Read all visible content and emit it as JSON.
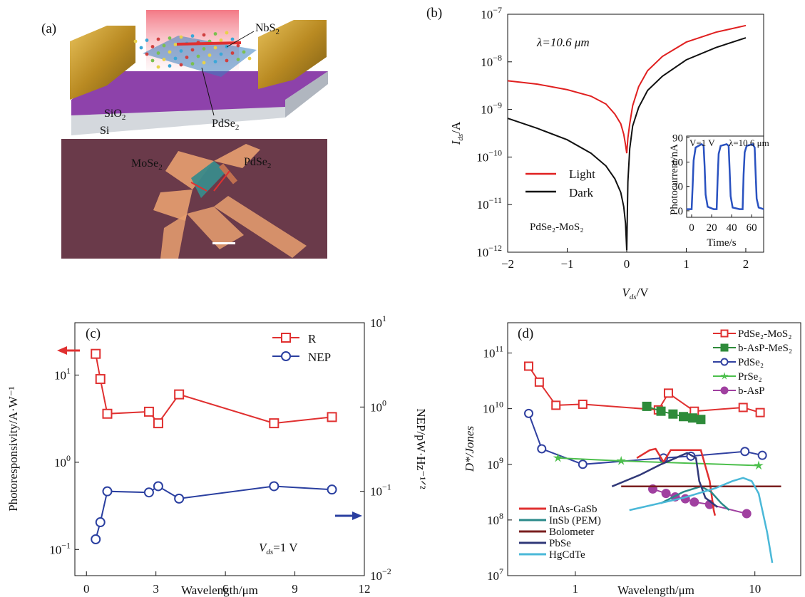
{
  "panels": {
    "a": {
      "label": "(a)",
      "labels": {
        "nbs2": "NbS",
        "sio2": "SiO",
        "si": "Si",
        "pdse2": "PdSe",
        "mose2": "MoSe",
        "pdse2b": "PdSe",
        "sub2": "2"
      }
    }
  },
  "chart_data": [
    {
      "panel": "(b)",
      "type": "line",
      "xlabel": "V_ds/V",
      "ylabel": "I_ds/A",
      "yscale": "log",
      "xlim": [
        -2,
        2.3
      ],
      "ylim": [
        1e-12,
        1e-07
      ],
      "xticks": [
        "−2",
        "−1",
        "0",
        "1",
        "2"
      ],
      "yticks_exp": [
        "−7",
        "−8",
        "−9",
        "−10",
        "−11",
        "−12"
      ],
      "annotations": [
        "λ=10.6 μm",
        "PdSe₂-MoS₂"
      ],
      "legend": {
        "position": "lower-left"
      },
      "series": [
        {
          "name": "Light",
          "color": "#e02020",
          "x": [
            -2,
            -1.5,
            -1,
            -0.6,
            -0.35,
            -0.2,
            -0.1,
            -0.05,
            -0.02,
            0.0,
            0.02,
            0.05,
            0.1,
            0.2,
            0.35,
            0.6,
            1.0,
            1.5,
            2.0
          ],
          "y": [
            4e-09,
            3.4e-09,
            2.6e-09,
            1.9e-09,
            1.3e-09,
            8e-10,
            5e-10,
            3e-10,
            1.8e-10,
            1.2e-10,
            2.5e-10,
            5e-10,
            1.2e-09,
            3e-09,
            6.5e-09,
            1.3e-08,
            2.6e-08,
            4.2e-08,
            5.8e-08
          ]
        },
        {
          "name": "Dark",
          "color": "#111111",
          "x": [
            -2,
            -1.5,
            -1,
            -0.6,
            -0.35,
            -0.2,
            -0.1,
            -0.05,
            -0.02,
            0.0,
            0.02,
            0.05,
            0.1,
            0.2,
            0.35,
            0.6,
            1.0,
            1.5,
            2.0
          ],
          "y": [
            6.5e-10,
            4e-10,
            2.3e-10,
            1.2e-10,
            6.5e-11,
            3.5e-11,
            1.8e-11,
            9e-12,
            4e-12,
            1.1e-12,
            3e-11,
            1.5e-10,
            4.5e-10,
            1.1e-09,
            2.5e-09,
            5e-09,
            1.1e-08,
            2e-08,
            3.2e-08
          ]
        }
      ],
      "inset": {
        "xlabel": "Time/s",
        "ylabel": "Photocurrent/nA",
        "xlim": [
          -5,
          72
        ],
        "ylim": [
          -8,
          92
        ],
        "xticks": [
          "0",
          "20",
          "40",
          "60"
        ],
        "yticks": [
          "0",
          "30",
          "60",
          "90"
        ],
        "annotations": [
          "V=1 V",
          "λ=10.6 μm"
        ],
        "color": "#2a52c0",
        "x": [
          -5,
          0,
          1,
          2,
          4,
          10,
          12,
          13,
          14,
          16,
          22,
          25,
          26,
          27,
          29,
          35,
          37,
          38,
          39,
          41,
          48,
          51,
          52,
          53,
          55,
          61,
          63,
          64,
          65,
          67,
          72
        ],
        "y": [
          2,
          2,
          30,
          62,
          78,
          82,
          80,
          55,
          20,
          5,
          2,
          2,
          40,
          70,
          80,
          82,
          80,
          50,
          18,
          4,
          2,
          2,
          45,
          72,
          80,
          82,
          78,
          45,
          15,
          4,
          2
        ]
      }
    },
    {
      "panel": "(c)",
      "type": "line",
      "xlabel": "Wavelength/μm",
      "ylabel": "Photoresponsivity/A·W⁻¹",
      "y2label": "NEP/pW·Hz⁻¹ᐟ²",
      "xlim": [
        -0.5,
        12
      ],
      "ylim_log": [
        -1.3,
        1.6
      ],
      "y2lim_log": [
        -2,
        1
      ],
      "xticks": [
        "0",
        "3",
        "6",
        "9",
        "12"
      ],
      "annotations": [
        "V_ds=1 V"
      ],
      "legend": {
        "position": "top-right"
      },
      "series": [
        {
          "name": "R",
          "color": "#e03030",
          "axis": "left",
          "x": [
            0.4,
            0.6,
            0.9,
            2.7,
            3.1,
            4.0,
            8.1,
            10.6
          ],
          "y": [
            17.5,
            9.0,
            3.6,
            3.8,
            2.8,
            6.0,
            2.8,
            3.3
          ]
        },
        {
          "name": "NEP",
          "color": "#2a3fa0",
          "axis": "right",
          "x": [
            0.4,
            0.6,
            0.9,
            2.7,
            3.1,
            4.0,
            8.1,
            10.6
          ],
          "y": [
            0.027,
            0.043,
            0.1,
            0.097,
            0.115,
            0.082,
            0.115,
            0.105
          ]
        }
      ]
    },
    {
      "panel": "(d)",
      "type": "line",
      "xlabel": "Wavelength/μm",
      "ylabel": "D*/Jones",
      "xscale": "log",
      "yscale": "log",
      "xlim": [
        0.42,
        18
      ],
      "ylim": [
        10000000.0,
        350000000000.0
      ],
      "xticks": [
        "1",
        "10"
      ],
      "yticks_exp": [
        "11",
        "10",
        "9",
        "8",
        "7"
      ],
      "legend": {
        "position": "top-right"
      },
      "series": [
        {
          "name": "PdSe₂-MoS₂",
          "color": "#e03030",
          "marker": "square",
          "x": [
            0.55,
            0.63,
            0.78,
            1.1,
            2.9,
            3.3,
            4.6,
            8.6,
            10.7
          ],
          "y": [
            58000000000.0,
            30000000000.0,
            11500000000.0,
            12000000000.0,
            9500000000.0,
            19000000000.0,
            9000000000.0,
            10500000000.0,
            8500000000.0
          ]
        },
        {
          "name": "b-AsP-MeS₂",
          "color": "#2e8b3a",
          "marker": "square",
          "x": [
            2.5,
            3.0,
            3.5,
            4.0,
            4.5,
            5.0
          ],
          "y": [
            11000000000.0,
            9000000000.0,
            8000000000.0,
            7200000000.0,
            6800000000.0,
            6400000000.0
          ]
        },
        {
          "name": "PdSe₂",
          "color": "#3040a0",
          "marker": "circle",
          "x": [
            0.55,
            0.65,
            1.1,
            3.1,
            4.4,
            8.8,
            11.0
          ],
          "y": [
            8200000000.0,
            1900000000.0,
            1000000000.0,
            1300000000.0,
            1400000000.0,
            1700000000.0,
            1450000000.0
          ]
        },
        {
          "name": "PrSe₂",
          "color": "#4cbf4c",
          "marker": "star",
          "x": [
            0.8,
            1.8,
            10.5
          ],
          "y": [
            1300000000.0,
            1150000000.0,
            950000000.0
          ]
        },
        {
          "name": "b-AsP",
          "color": "#a040a0",
          "marker": "circle",
          "x": [
            2.7,
            3.2,
            3.6,
            4.1,
            4.6,
            5.6,
            9.0
          ],
          "y": [
            360000000.0,
            300000000.0,
            260000000.0,
            240000000.0,
            210000000.0,
            190000000.0,
            130000000.0
          ]
        },
        {
          "name": "InAs-GaSb",
          "color": "#e03030",
          "marker": "none",
          "x": [
            2.2,
            2.6,
            2.8,
            3.1,
            3.4,
            5.0,
            5.6,
            5.9,
            6.0
          ],
          "y": [
            1300000000.0,
            1800000000.0,
            1900000000.0,
            1100000000.0,
            1800000000.0,
            1800000000.0,
            500000000.0,
            150000000.0,
            120000000.0
          ]
        },
        {
          "name": "InSb (PEM)",
          "color": "#2a8a8a",
          "marker": "none",
          "x": [
            3.0,
            4.0,
            5.0,
            5.7,
            6.5,
            7.2
          ],
          "y": [
            200000000.0,
            320000000.0,
            400000000.0,
            320000000.0,
            200000000.0,
            150000000.0
          ]
        },
        {
          "name": "Bolometer",
          "color": "#7a1f1f",
          "marker": "none",
          "x": [
            1.8,
            14
          ],
          "y": [
            400000000.0,
            400000000.0
          ]
        },
        {
          "name": "PbSe",
          "color": "#303878",
          "marker": "none",
          "x": [
            1.6,
            2.3,
            3.0,
            4.2,
            4.7,
            4.9,
            5.3,
            6.2
          ],
          "y": [
            400000000.0,
            650000000.0,
            1000000000.0,
            1600000000.0,
            1300000000.0,
            500000000.0,
            250000000.0,
            170000000.0
          ]
        },
        {
          "name": "HgCdTe",
          "color": "#4ab8d8",
          "marker": "none",
          "x": [
            2.0,
            4.0,
            6.0,
            7.5,
            8.6,
            9.6,
            10.5,
            11.7,
            12.5
          ],
          "y": [
            150000000.0,
            250000000.0,
            370000000.0,
            500000000.0,
            570000000.0,
            500000000.0,
            300000000.0,
            60000000.0,
            17000000.0
          ]
        }
      ]
    }
  ]
}
